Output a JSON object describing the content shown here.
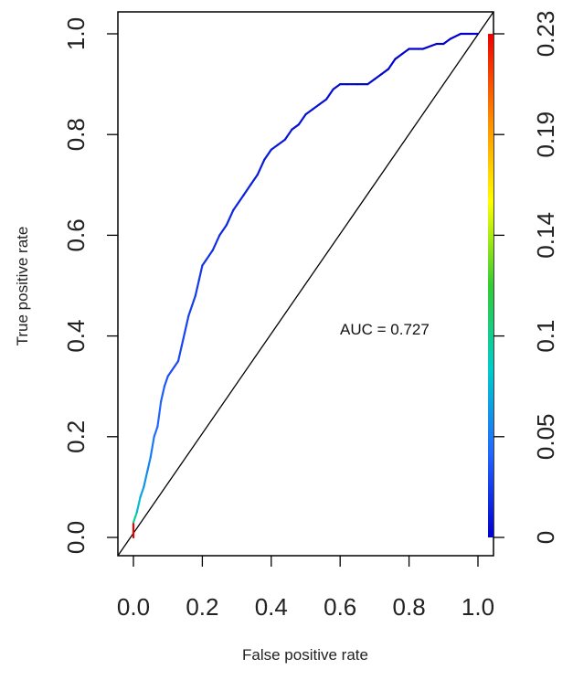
{
  "chart_data": {
    "type": "line",
    "xlabel": "False positive rate",
    "ylabel": "True positive rate",
    "xlim": [
      0,
      1
    ],
    "ylim": [
      0,
      1
    ],
    "xticks": [
      "0.0",
      "0.2",
      "0.4",
      "0.6",
      "0.8",
      "1.0"
    ],
    "yticks": [
      "0.0",
      "0.2",
      "0.4",
      "0.6",
      "0.8",
      "1.0"
    ],
    "annotation": "AUC = 0.727",
    "colorbar": {
      "ticks": [
        "0",
        "0.05",
        "0.1",
        "0.14",
        "0.19",
        "0.23"
      ],
      "range": [
        0,
        0.23
      ],
      "colors": [
        "#0000cc",
        "#2266ff",
        "#00cccc",
        "#33cc33",
        "#ffff00",
        "#ff8800",
        "#ee0000"
      ]
    },
    "diagonal": true,
    "series": [
      {
        "x": [
          0,
          0,
          0.01,
          0.02,
          0.03,
          0.04,
          0.05,
          0.06,
          0.07,
          0.08,
          0.09,
          0.1,
          0.11,
          0.12,
          0.13,
          0.14,
          0.15,
          0.16,
          0.17,
          0.18,
          0.19,
          0.2,
          0.21,
          0.22,
          0.23,
          0.25,
          0.27,
          0.29,
          0.3,
          0.32,
          0.34,
          0.36,
          0.38,
          0.4,
          0.42,
          0.44,
          0.46,
          0.48,
          0.5,
          0.52,
          0.54,
          0.56,
          0.58,
          0.6,
          0.62,
          0.65,
          0.68,
          0.7,
          0.72,
          0.74,
          0.76,
          0.78,
          0.8,
          0.84,
          0.88,
          0.9,
          0.92,
          0.95,
          1.0
        ],
        "y": [
          0,
          0.03,
          0.05,
          0.08,
          0.1,
          0.13,
          0.16,
          0.2,
          0.22,
          0.27,
          0.3,
          0.32,
          0.33,
          0.34,
          0.35,
          0.38,
          0.41,
          0.44,
          0.46,
          0.48,
          0.51,
          0.54,
          0.55,
          0.56,
          0.57,
          0.6,
          0.62,
          0.65,
          0.66,
          0.68,
          0.7,
          0.72,
          0.75,
          0.77,
          0.78,
          0.79,
          0.81,
          0.82,
          0.84,
          0.85,
          0.86,
          0.87,
          0.89,
          0.9,
          0.9,
          0.9,
          0.9,
          0.91,
          0.92,
          0.93,
          0.95,
          0.96,
          0.97,
          0.97,
          0.98,
          0.98,
          0.99,
          1.0,
          1.0
        ],
        "threshold": [
          0.23,
          0.09,
          0.07,
          0.06,
          0.055,
          0.05,
          0.045,
          0.04,
          0.038,
          0.035,
          0.032,
          0.03,
          0.029,
          0.028,
          0.027,
          0.026,
          0.025,
          0.024,
          0.023,
          0.022,
          0.021,
          0.02,
          0.019,
          0.018,
          0.017,
          0.016,
          0.015,
          0.014,
          0.013,
          0.012,
          0.011,
          0.01,
          0.009,
          0.0085,
          0.008,
          0.0075,
          0.007,
          0.0065,
          0.006,
          0.0055,
          0.005,
          0.0045,
          0.004,
          0.0035,
          0.003,
          0.0027,
          0.0024,
          0.0021,
          0.0018,
          0.0015,
          0.0012,
          0.001,
          0.0008,
          0.0006,
          0.0004,
          0.0003,
          0.0002,
          0.0001,
          0
        ]
      }
    ]
  }
}
